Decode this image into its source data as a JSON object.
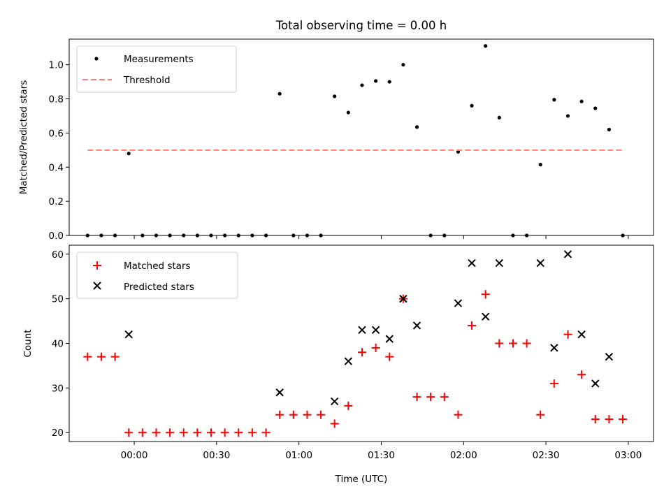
{
  "chart_data": [
    {
      "type": "scatter",
      "title": "Total observing time = 0.00 h",
      "xlabel": "",
      "ylabel": "Matched/Predicted stars",
      "ylim": [
        0,
        1.15
      ],
      "yticks": [
        0.0,
        0.2,
        0.4,
        0.6,
        0.8,
        1.0
      ],
      "ytick_labels": [
        "0.0",
        "0.2",
        "0.4",
        "0.6",
        "0.8",
        "1.0"
      ],
      "xlim": [
        -23.7,
        189.2
      ],
      "legend_position": "upper-left",
      "series": [
        {
          "name": "Measurements",
          "marker": "dot",
          "color": "#000000",
          "x": [
            -17,
            -12,
            -7,
            -2,
            3,
            8,
            13,
            18,
            23,
            28,
            33,
            38,
            43,
            48,
            53,
            58,
            63,
            68,
            73,
            78,
            83,
            88,
            93,
            98,
            103,
            108,
            113,
            118,
            123,
            128,
            133,
            138,
            143,
            148,
            153,
            158,
            163,
            168,
            173,
            178
          ],
          "y": [
            0.0,
            0.0,
            0.0,
            0.48,
            0.0,
            0.0,
            0.0,
            0.0,
            0.0,
            0.0,
            0.0,
            0.0,
            0.0,
            0.0,
            0.83,
            0.0,
            0.0,
            0.0,
            0.815,
            0.72,
            0.88,
            0.905,
            0.9,
            1.0,
            0.635,
            0.0,
            0.0,
            0.49,
            0.76,
            1.11,
            0.69,
            0.0,
            0.0,
            0.415,
            0.795,
            0.7,
            0.785,
            0.745,
            0.62,
            0.0
          ]
        },
        {
          "name": "Threshold",
          "style": "dashed",
          "color": "#ff7f7f",
          "x": [
            -17,
            178
          ],
          "y": [
            0.5,
            0.5
          ]
        }
      ]
    },
    {
      "type": "scatter",
      "title": "",
      "xlabel": "Time (UTC)",
      "ylabel": "Count",
      "ylim": [
        18,
        62
      ],
      "yticks": [
        20,
        30,
        40,
        50,
        60
      ],
      "ytick_labels": [
        "20",
        "30",
        "40",
        "50",
        "60"
      ],
      "xlim": [
        -23.7,
        189.2
      ],
      "xticks": [
        0,
        30,
        60,
        90,
        120,
        150,
        180
      ],
      "xtick_labels": [
        "00:00",
        "00:30",
        "01:00",
        "01:30",
        "02:00",
        "02:30",
        "03:00"
      ],
      "legend_position": "upper-left",
      "series": [
        {
          "name": "Matched stars",
          "marker": "plus",
          "color": "#ff0000",
          "x": [
            -17,
            -12,
            -7,
            -2,
            3,
            8,
            13,
            18,
            23,
            28,
            33,
            38,
            43,
            48,
            53,
            58,
            63,
            68,
            73,
            78,
            83,
            88,
            93,
            98,
            103,
            108,
            113,
            118,
            123,
            128,
            133,
            138,
            143,
            148,
            153,
            158,
            163,
            168,
            173,
            178
          ],
          "y": [
            37,
            37,
            37,
            20,
            20,
            20,
            20,
            20,
            20,
            20,
            20,
            20,
            20,
            20,
            24,
            24,
            24,
            24,
            22,
            26,
            38,
            39,
            37,
            50,
            28,
            28,
            28,
            24,
            44,
            51,
            40,
            40,
            40,
            24,
            31,
            42,
            33,
            23,
            23,
            23
          ]
        },
        {
          "name": "Predicted stars",
          "marker": "x",
          "color": "#000000",
          "x": [
            -2,
            53,
            73,
            78,
            83,
            88,
            93,
            98,
            103,
            118,
            123,
            128,
            133,
            148,
            153,
            158,
            163,
            168,
            173
          ],
          "y": [
            42,
            29,
            27,
            36,
            43,
            43,
            41,
            50,
            44,
            49,
            58,
            46,
            58,
            58,
            39,
            60,
            42,
            31,
            37
          ]
        }
      ]
    }
  ]
}
